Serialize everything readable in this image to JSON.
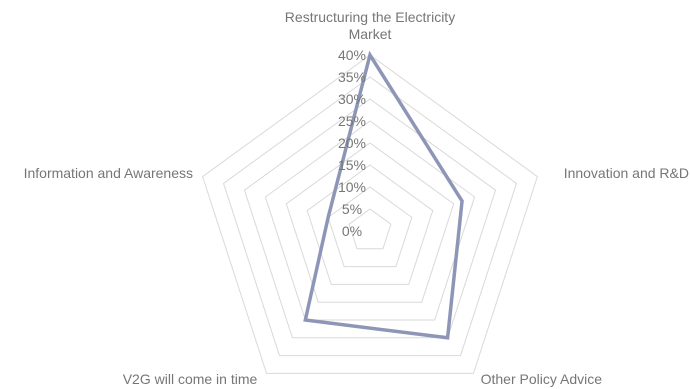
{
  "chart_data": {
    "type": "radar",
    "categories": [
      "Restructuring the Electricity Market",
      "Innovation and R&D",
      "Other Policy Advice",
      "V2G will come in time",
      "Information and Awareness"
    ],
    "category_lines": [
      [
        "Restructuring the Electricity",
        "Market"
      ],
      [
        "Innovation and R&D"
      ],
      [
        "Other Policy Advice"
      ],
      [
        "V2G will come in time"
      ],
      [
        "Information and Awareness"
      ]
    ],
    "series": [
      {
        "values": [
          40,
          22,
          30,
          25,
          10
        ]
      }
    ],
    "ticks": [
      "0%",
      "5%",
      "10%",
      "15%",
      "20%",
      "25%",
      "30%",
      "35%",
      "40%"
    ],
    "rmin": 0,
    "rmax": 40,
    "grid": true,
    "legend": "none",
    "colors": {
      "series": "#8d96b6",
      "grid": "#d9d9d9",
      "text": "#767676"
    }
  }
}
